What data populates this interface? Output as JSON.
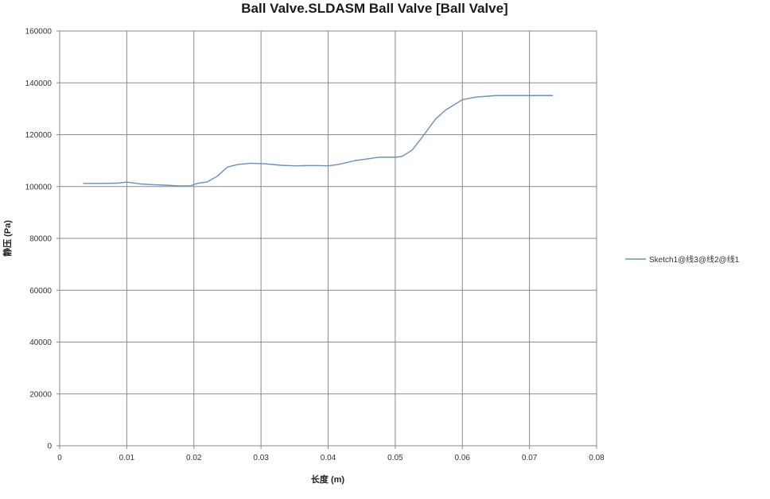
{
  "chart_data": {
    "type": "line",
    "title": "Ball Valve.SLDASM Ball Valve [Ball Valve]",
    "xlabel": "长度 (m)",
    "ylabel": "静压 (Pa)",
    "xlim": [
      0,
      0.08
    ],
    "ylim": [
      0,
      160000
    ],
    "x_ticks": [
      "0",
      "0.01",
      "0.02",
      "0.03",
      "0.04",
      "0.05",
      "0.06",
      "0.07",
      "0.08"
    ],
    "x_tick_values": [
      0,
      0.01,
      0.02,
      0.03,
      0.04,
      0.05,
      0.06,
      0.07,
      0.08
    ],
    "y_ticks": [
      "0",
      "20000",
      "40000",
      "60000",
      "80000",
      "100000",
      "120000",
      "140000",
      "160000"
    ],
    "y_tick_values": [
      0,
      20000,
      40000,
      60000,
      80000,
      100000,
      120000,
      140000,
      160000
    ],
    "grid": true,
    "legend_position": "right",
    "series": [
      {
        "name": "Sketch1@线3@线2@线1",
        "color": "#6a8fbe",
        "x": [
          0.0035,
          0.0065,
          0.0085,
          0.01,
          0.012,
          0.014,
          0.016,
          0.018,
          0.0195,
          0.0205,
          0.022,
          0.0235,
          0.025,
          0.0265,
          0.0285,
          0.0305,
          0.033,
          0.035,
          0.038,
          0.04,
          0.0415,
          0.044,
          0.046,
          0.0475,
          0.05,
          0.051,
          0.0525,
          0.054,
          0.056,
          0.0575,
          0.06,
          0.062,
          0.065,
          0.07,
          0.0735
        ],
        "values": [
          101200,
          101200,
          101300,
          101700,
          101000,
          100700,
          100500,
          100200,
          100300,
          101200,
          101800,
          104000,
          107500,
          108500,
          109000,
          108800,
          108200,
          108000,
          108100,
          108000,
          108500,
          110000,
          110700,
          111300,
          111300,
          111600,
          114000,
          119000,
          126000,
          129500,
          133500,
          134500,
          135100,
          135100,
          135100
        ]
      }
    ]
  }
}
